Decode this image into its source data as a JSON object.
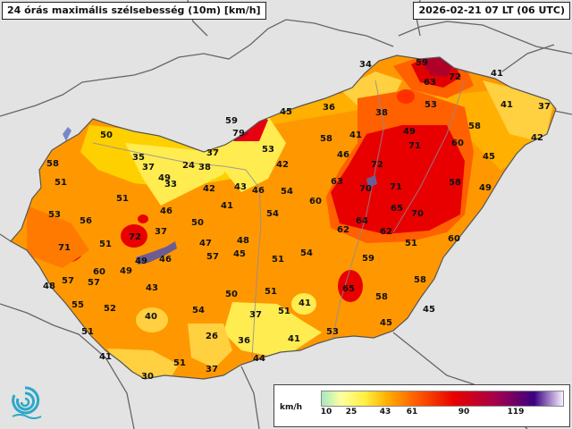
{
  "title_left": "24 órás maximális szélsebesség (10m) [km/h]",
  "title_right": "2026-02-21 07 LT (06 UTC)",
  "legend": {
    "unit": "km/h",
    "ticks": [
      "10",
      "25",
      "43",
      "61",
      "90",
      "119"
    ]
  },
  "colors": {
    "background": "#e3e3e3",
    "low": "#ffff60",
    "mid": "#ff9800",
    "high": "#e80000",
    "peak": "#b0002a"
  },
  "stations": [
    {
      "v": "34"
    },
    {
      "v": "59"
    },
    {
      "v": "72"
    },
    {
      "v": "41"
    },
    {
      "v": "63"
    },
    {
      "v": "53"
    },
    {
      "v": "41"
    },
    {
      "v": "37"
    },
    {
      "v": "58"
    },
    {
      "v": "42"
    },
    {
      "v": "59"
    },
    {
      "v": "45"
    },
    {
      "v": "36"
    },
    {
      "v": "38"
    },
    {
      "v": "79"
    },
    {
      "v": "50"
    },
    {
      "v": "53"
    },
    {
      "v": "58"
    },
    {
      "v": "41"
    },
    {
      "v": "49"
    },
    {
      "v": "60"
    },
    {
      "v": "35"
    },
    {
      "v": "37"
    },
    {
      "v": "24"
    },
    {
      "v": "38"
    },
    {
      "v": "42"
    },
    {
      "v": "46"
    },
    {
      "v": "72"
    },
    {
      "v": "71"
    },
    {
      "v": "45"
    },
    {
      "v": "58"
    },
    {
      "v": "51"
    },
    {
      "v": "33"
    },
    {
      "v": "37"
    },
    {
      "v": "49"
    },
    {
      "v": "42"
    },
    {
      "v": "43"
    },
    {
      "v": "46"
    },
    {
      "v": "54"
    },
    {
      "v": "63"
    },
    {
      "v": "70"
    },
    {
      "v": "71"
    },
    {
      "v": "58"
    },
    {
      "v": "49"
    },
    {
      "v": "53"
    },
    {
      "v": "51"
    },
    {
      "v": "41"
    },
    {
      "v": "60"
    },
    {
      "v": "56"
    },
    {
      "v": "46"
    },
    {
      "v": "54"
    },
    {
      "v": "65"
    },
    {
      "v": "70"
    },
    {
      "v": "71"
    },
    {
      "v": "72"
    },
    {
      "v": "50"
    },
    {
      "v": "64"
    },
    {
      "v": "62"
    },
    {
      "v": "62"
    },
    {
      "v": "37"
    },
    {
      "v": "51"
    },
    {
      "v": "47"
    },
    {
      "v": "48"
    },
    {
      "v": "60"
    },
    {
      "v": "51"
    },
    {
      "v": "49"
    },
    {
      "v": "57"
    },
    {
      "v": "45"
    },
    {
      "v": "51"
    },
    {
      "v": "54"
    },
    {
      "v": "59"
    },
    {
      "v": "60"
    },
    {
      "v": "57"
    },
    {
      "v": "48"
    },
    {
      "v": "57"
    },
    {
      "v": "49"
    },
    {
      "v": "46"
    },
    {
      "v": "58"
    },
    {
      "v": "43"
    },
    {
      "v": "65"
    },
    {
      "v": "55"
    },
    {
      "v": "52"
    },
    {
      "v": "50"
    },
    {
      "v": "51"
    },
    {
      "v": "58"
    },
    {
      "v": "45"
    },
    {
      "v": "41"
    },
    {
      "v": "40"
    },
    {
      "v": "54"
    },
    {
      "v": "37"
    },
    {
      "v": "51"
    },
    {
      "v": "51"
    },
    {
      "v": "45"
    },
    {
      "v": "26"
    },
    {
      "v": "36"
    },
    {
      "v": "41"
    },
    {
      "v": "53"
    },
    {
      "v": "41"
    },
    {
      "v": "51"
    },
    {
      "v": "37"
    },
    {
      "v": "44"
    },
    {
      "v": "30"
    }
  ]
}
